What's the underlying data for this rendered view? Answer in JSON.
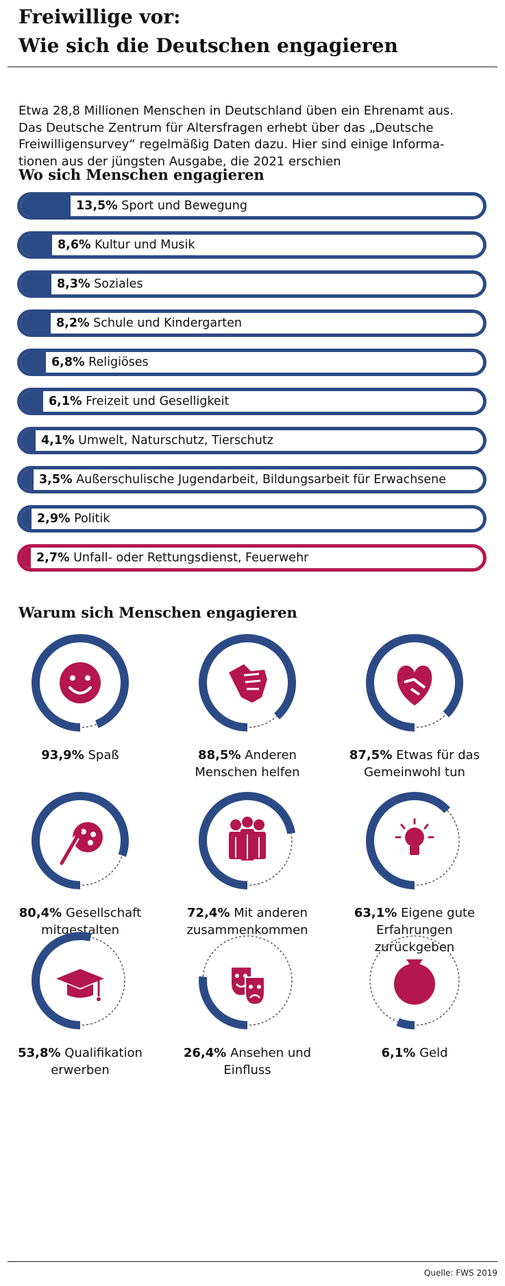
{
  "title": [
    "Freiwillige vor:",
    "Wie sich die Deutschen engagieren"
  ],
  "intro": [
    "Etwa 28,8 Millionen Menschen in Deutschland üben ein Ehrenamt aus.",
    "Das Deutsche Zentrum für Altersfragen erhebt über das „Deutsche",
    "Freiwilligensurvey“ regelmäßig Daten dazu. Hier sind einige Informa-",
    "tionen aus der jüngsten Ausgabe, die 2021 erschien"
  ],
  "colors": {
    "primary": "#2c4a85",
    "accent": "#b4164e"
  },
  "chart_data": [
    {
      "type": "bar",
      "title": "Wo sich Menschen engagieren",
      "unit": "%",
      "categories": [
        "Sport und Bewegung",
        "Kultur und Musik",
        "Soziales",
        "Schule und Kindergarten",
        "Religiöses",
        "Freizeit und Geselligkeit",
        "Umwelt, Naturschutz, Tierschutz",
        "Außerschulische Jugendarbeit, Bildungsarbeit für Erwachsene",
        "Politik",
        "Unfall- oder Rettungsdienst, Feuerwehr"
      ],
      "values": [
        13.5,
        8.6,
        8.3,
        8.2,
        6.8,
        6.1,
        4.1,
        3.5,
        2.9,
        2.7
      ],
      "value_labels": [
        "13,5%",
        "8,6%",
        "8,3%",
        "8,2%",
        "6,8%",
        "6,1%",
        "4,1%",
        "3,5%",
        "2,9%",
        "2,7%"
      ],
      "highlight": [
        false,
        false,
        false,
        false,
        false,
        false,
        false,
        false,
        false,
        true
      ]
    },
    {
      "type": "pie",
      "title": "Warum sich Menschen engagieren",
      "unit": "%",
      "items": [
        {
          "value": 93.9,
          "pct": "93,9%",
          "label": "Spaß",
          "icon": "smiley-icon"
        },
        {
          "value": 88.5,
          "pct": "88,5%",
          "label": "Anderen Menschen helfen",
          "icon": "helping-hand-icon"
        },
        {
          "value": 87.5,
          "pct": "87,5%",
          "label": "Etwas für das Gemeinwohl tun",
          "icon": "heart-handshake-icon"
        },
        {
          "value": 80.4,
          "pct": "80,4%",
          "label": "Gesellschaft mitgestalten",
          "icon": "palette-icon"
        },
        {
          "value": 72.4,
          "pct": "72,4%",
          "label": "Mit anderen zusammenkommen",
          "icon": "people-group-icon"
        },
        {
          "value": 63.1,
          "pct": "63,1%",
          "label": "Eigene gute Erfahrungen zurückgeben",
          "icon": "lightbulb-icon"
        },
        {
          "value": 53.8,
          "pct": "53,8%",
          "label": "Qualifikation erwerben",
          "icon": "graduation-cap-icon"
        },
        {
          "value": 26.4,
          "pct": "26,4%",
          "label": "Ansehen und Einfluss",
          "icon": "theater-masks-icon"
        },
        {
          "value": 6.1,
          "pct": "6,1%",
          "label": "Geld",
          "icon": "money-bag-icon"
        }
      ]
    }
  ],
  "source": "Quelle: FWS 2019"
}
